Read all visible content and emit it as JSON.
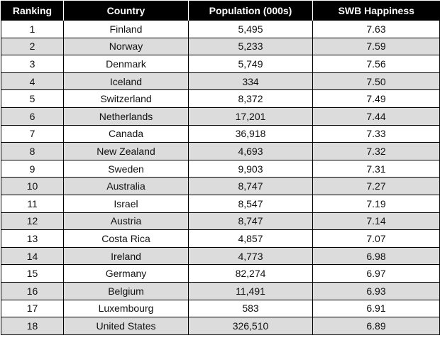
{
  "headers": [
    "Ranking",
    "Country",
    "Population (000s)",
    "SWB Happiness"
  ],
  "rows": [
    [
      "1",
      "Finland",
      "5,495",
      "7.63"
    ],
    [
      "2",
      "Norway",
      "5,233",
      "7.59"
    ],
    [
      "3",
      "Denmark",
      "5,749",
      "7.56"
    ],
    [
      "4",
      "Iceland",
      "334",
      "7.50"
    ],
    [
      "5",
      "Switzerland",
      "8,372",
      "7.49"
    ],
    [
      "6",
      "Netherlands",
      "17,201",
      "7.44"
    ],
    [
      "7",
      "Canada",
      "36,918",
      "7.33"
    ],
    [
      "8",
      "New Zealand",
      "4,693",
      "7.32"
    ],
    [
      "9",
      "Sweden",
      "9,903",
      "7.31"
    ],
    [
      "10",
      "Australia",
      "8,747",
      "7.27"
    ],
    [
      "11",
      "Israel",
      "8,547",
      "7.19"
    ],
    [
      "12",
      "Austria",
      "8,747",
      "7.14"
    ],
    [
      "13",
      "Costa Rica",
      "4,857",
      "7.07"
    ],
    [
      "14",
      "Ireland",
      "4,773",
      "6.98"
    ],
    [
      "15",
      "Germany",
      "82,274",
      "6.97"
    ],
    [
      "16",
      "Belgium",
      "11,491",
      "6.93"
    ],
    [
      "17",
      "Luxembourg",
      "583",
      "6.91"
    ],
    [
      "18",
      "United States",
      "326,510",
      "6.89"
    ]
  ],
  "colors": {
    "header_bg": "#000000",
    "header_text": "#ffffff",
    "alt_row_bg": "#dcdcdc"
  }
}
